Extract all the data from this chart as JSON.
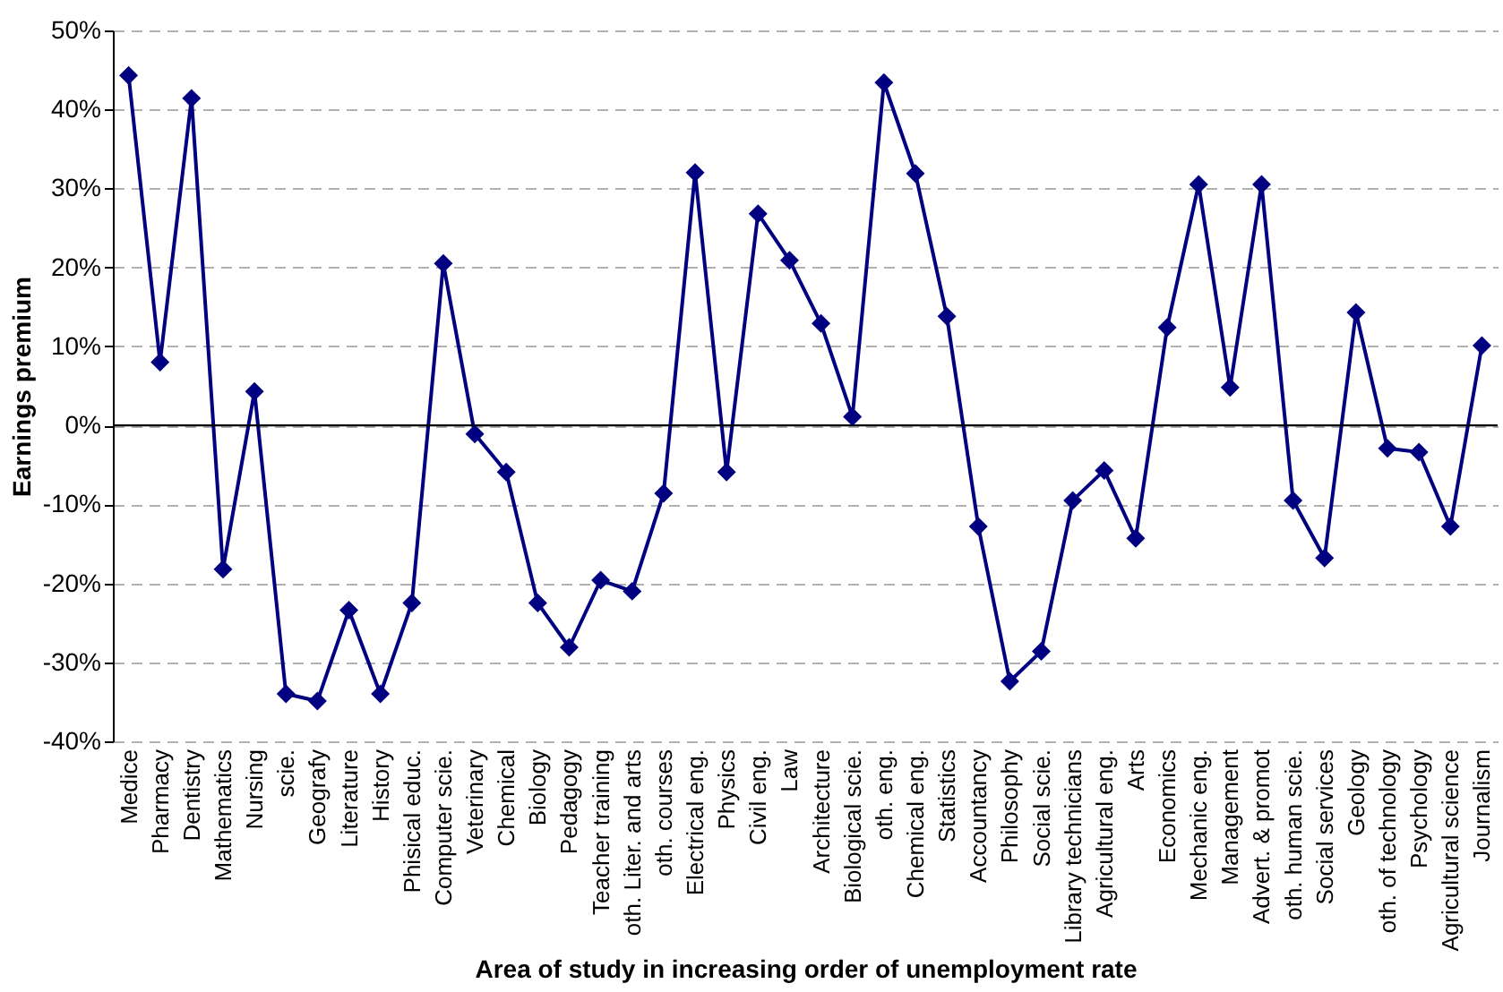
{
  "chart_data": {
    "type": "line",
    "xlabel": "Area of study in increasing order of unemployment rate",
    "ylabel": "Earnings premium",
    "categories": [
      "Medice",
      "Pharmacy",
      "Dentistry",
      "Mathematics",
      "Nursing",
      "scie.",
      "Geografy",
      "Literature",
      "History",
      "Phisical educ.",
      "Computer scie.",
      "Veterinary",
      "Chemical",
      "Biology",
      "Pedagogy",
      "Teacher training",
      "oth. Liter. and arts",
      "oth. courses",
      "Electrical eng.",
      "Physics",
      "Civil eng.",
      "Law",
      "Architecture",
      "Biological scie.",
      "oth. eng.",
      "Chemical eng.",
      "Statistics",
      "Accountancy",
      "Philosophy",
      "Social scie.",
      "Library technicians",
      "Agricultural eng.",
      "Arts",
      "Economics",
      "Mechanic eng.",
      "Management",
      "Advert. & promot",
      "oth. human scie.",
      "Social services",
      "Geology",
      "oth. of technology",
      "Psychology",
      "Agricultural science",
      "Journalism"
    ],
    "series": [
      {
        "color": "#000080",
        "values": [
          44.3,
          8,
          41.4,
          -18.2,
          4.3,
          -34,
          -34.9,
          -23.4,
          -34,
          -22.5,
          20.5,
          -1.1,
          -5.9,
          -22.5,
          -28.1,
          -19.6,
          -21,
          -8.6,
          32,
          -5.9,
          26.8,
          20.9,
          12.9,
          1.1,
          43.4,
          31.9,
          13.8,
          -12.8,
          -32.4,
          -28.6,
          -9.5,
          -5.7,
          -14.3,
          12.4,
          30.5,
          4.8,
          30.5,
          -9.5,
          -16.8,
          14.3,
          -2.9,
          -3.4,
          -12.8,
          10.1
        ]
      }
    ],
    "ylim": [
      -40,
      50
    ],
    "yticks": [
      {
        "value": -40,
        "label": "-40%"
      },
      {
        "value": -30,
        "label": "-30%"
      },
      {
        "value": -20,
        "label": "-20%"
      },
      {
        "value": -10,
        "label": "-10%"
      },
      {
        "value": 0,
        "label": "0%"
      },
      {
        "value": 10,
        "label": "10%"
      },
      {
        "value": 20,
        "label": "20%"
      },
      {
        "value": 30,
        "label": "30%"
      },
      {
        "value": 40,
        "label": "40%"
      },
      {
        "value": 50,
        "label": "50%"
      }
    ],
    "ref_lines": [
      {
        "axis": "y",
        "value": 0,
        "color": "#000000"
      }
    ],
    "grid": "y",
    "marker": "diamond",
    "line_style": "solid"
  }
}
